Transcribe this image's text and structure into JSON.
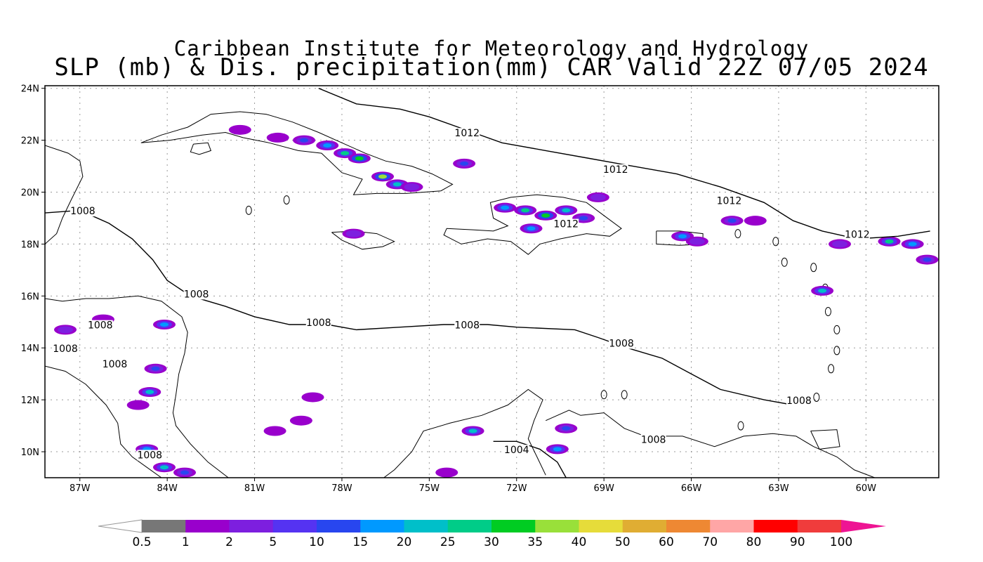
{
  "header": {
    "line1": "Caribbean Institute for Meteorology and Hydrology",
    "line2": "SLP (mb) & Dis. precipitation(mm) CAR Valid 22Z 07/05 2024"
  },
  "map": {
    "lon_range": [
      -88.2,
      -57.5
    ],
    "lat_range": [
      9.0,
      24.1
    ],
    "lat_ticks": [
      {
        "value": 24,
        "label": "24N"
      },
      {
        "value": 22,
        "label": "22N"
      },
      {
        "value": 20,
        "label": "20N"
      },
      {
        "value": 18,
        "label": "18N"
      },
      {
        "value": 16,
        "label": "16N"
      },
      {
        "value": 14,
        "label": "14N"
      },
      {
        "value": 12,
        "label": "12N"
      },
      {
        "value": 10,
        "label": "10N"
      }
    ],
    "lon_ticks": [
      {
        "value": -87,
        "label": "87W"
      },
      {
        "value": -84,
        "label": "84W"
      },
      {
        "value": -81,
        "label": "81W"
      },
      {
        "value": -78,
        "label": "78W"
      },
      {
        "value": -75,
        "label": "75W"
      },
      {
        "value": -72,
        "label": "72W"
      },
      {
        "value": -69,
        "label": "69W"
      },
      {
        "value": -66,
        "label": "66W"
      },
      {
        "value": -63,
        "label": "63W"
      },
      {
        "value": -60,
        "label": "60W"
      }
    ],
    "isobars": [
      {
        "value": 1012,
        "label": "1012",
        "points": [
          [
            -78.8,
            24.0
          ],
          [
            -77.5,
            23.4
          ],
          [
            -76.0,
            23.2
          ],
          [
            -75.0,
            22.9
          ],
          [
            -73.5,
            22.3
          ],
          [
            -72.5,
            21.9
          ],
          [
            -71.0,
            21.6
          ],
          [
            -69.5,
            21.3
          ],
          [
            -68.0,
            21.0
          ],
          [
            -66.5,
            20.7
          ],
          [
            -65.0,
            20.2
          ],
          [
            -63.5,
            19.6
          ],
          [
            -62.5,
            18.9
          ],
          [
            -61.5,
            18.5
          ],
          [
            -60.3,
            18.2
          ],
          [
            -58.9,
            18.3
          ],
          [
            -57.8,
            18.5
          ]
        ]
      },
      {
        "value": 1008,
        "label": "1008",
        "points": [
          [
            -88.2,
            19.2
          ],
          [
            -87.0,
            19.3
          ],
          [
            -86.0,
            18.8
          ],
          [
            -85.2,
            18.2
          ],
          [
            -84.5,
            17.4
          ],
          [
            -84.0,
            16.6
          ],
          [
            -83.2,
            16.0
          ],
          [
            -82.0,
            15.6
          ],
          [
            -81.0,
            15.2
          ],
          [
            -79.8,
            14.9
          ],
          [
            -78.5,
            14.9
          ],
          [
            -77.5,
            14.7
          ],
          [
            -76.0,
            14.8
          ],
          [
            -74.5,
            14.9
          ],
          [
            -73.0,
            14.9
          ],
          [
            -72.0,
            14.8
          ],
          [
            -70.0,
            14.7
          ],
          [
            -69.2,
            14.4
          ],
          [
            -68.2,
            14.0
          ],
          [
            -67.0,
            13.6
          ],
          [
            -66.0,
            13.0
          ],
          [
            -65.0,
            12.4
          ],
          [
            -63.5,
            12.0
          ],
          [
            -62.5,
            11.8
          ]
        ]
      },
      {
        "value": 1004,
        "label": "1004",
        "points": [
          [
            -72.8,
            10.4
          ],
          [
            -72.0,
            10.4
          ],
          [
            -71.2,
            10.1
          ],
          [
            -70.6,
            9.6
          ],
          [
            -70.3,
            9.0
          ]
        ]
      }
    ],
    "isobar_labels": [
      {
        "text": "1012",
        "lon": -73.7,
        "lat": 22.2
      },
      {
        "text": "1012",
        "lon": -68.6,
        "lat": 20.8
      },
      {
        "text": "1012",
        "lon": -64.7,
        "lat": 19.6
      },
      {
        "text": "1012",
        "lon": -70.3,
        "lat": 18.7
      },
      {
        "text": "1012",
        "lon": -60.3,
        "lat": 18.3
      },
      {
        "text": "1008",
        "lon": -86.9,
        "lat": 19.2
      },
      {
        "text": "1008",
        "lon": -83.0,
        "lat": 16.0
      },
      {
        "text": "1008",
        "lon": -78.8,
        "lat": 14.9
      },
      {
        "text": "1008",
        "lon": -73.7,
        "lat": 14.8
      },
      {
        "text": "1008",
        "lon": -68.4,
        "lat": 14.1
      },
      {
        "text": "1008",
        "lon": -86.3,
        "lat": 14.8
      },
      {
        "text": "1008",
        "lon": -87.5,
        "lat": 13.9
      },
      {
        "text": "1008",
        "lon": -85.8,
        "lat": 13.3
      },
      {
        "text": "1008",
        "lon": -84.6,
        "lat": 9.8
      },
      {
        "text": "1008",
        "lon": -62.3,
        "lat": 11.9
      },
      {
        "text": "1008",
        "lon": -67.3,
        "lat": 10.4
      },
      {
        "text": "1004",
        "lon": -72.0,
        "lat": 10.0
      }
    ],
    "precip_cells": [
      {
        "lon": -80.2,
        "lat": 22.1,
        "mm": 2
      },
      {
        "lon": -79.3,
        "lat": 22.0,
        "mm": 10
      },
      {
        "lon": -78.5,
        "lat": 21.8,
        "mm": 15
      },
      {
        "lon": -77.9,
        "lat": 21.5,
        "mm": 25
      },
      {
        "lon": -77.4,
        "lat": 21.3,
        "mm": 30
      },
      {
        "lon": -76.6,
        "lat": 20.6,
        "mm": 35
      },
      {
        "lon": -76.1,
        "lat": 20.3,
        "mm": 20
      },
      {
        "lon": -75.6,
        "lat": 20.2,
        "mm": 5
      },
      {
        "lon": -81.5,
        "lat": 22.4,
        "mm": 1
      },
      {
        "lon": -73.8,
        "lat": 21.1,
        "mm": 10
      },
      {
        "lon": -77.6,
        "lat": 18.4,
        "mm": 5
      },
      {
        "lon": -72.4,
        "lat": 19.4,
        "mm": 15
      },
      {
        "lon": -71.7,
        "lat": 19.3,
        "mm": 25
      },
      {
        "lon": -71.0,
        "lat": 19.1,
        "mm": 30
      },
      {
        "lon": -70.3,
        "lat": 19.3,
        "mm": 20
      },
      {
        "lon": -69.7,
        "lat": 19.0,
        "mm": 10
      },
      {
        "lon": -71.5,
        "lat": 18.6,
        "mm": 15
      },
      {
        "lon": -69.2,
        "lat": 19.8,
        "mm": 5
      },
      {
        "lon": -66.3,
        "lat": 18.3,
        "mm": 15
      },
      {
        "lon": -65.8,
        "lat": 18.1,
        "mm": 5
      },
      {
        "lon": -64.6,
        "lat": 18.9,
        "mm": 10
      },
      {
        "lon": -63.8,
        "lat": 18.9,
        "mm": 2
      },
      {
        "lon": -61.5,
        "lat": 16.2,
        "mm": 20
      },
      {
        "lon": -60.9,
        "lat": 18.0,
        "mm": 5
      },
      {
        "lon": -59.2,
        "lat": 18.1,
        "mm": 25
      },
      {
        "lon": -58.4,
        "lat": 18.0,
        "mm": 15
      },
      {
        "lon": -57.9,
        "lat": 17.4,
        "mm": 10
      },
      {
        "lon": -84.1,
        "lat": 14.9,
        "mm": 15
      },
      {
        "lon": -84.4,
        "lat": 13.2,
        "mm": 10
      },
      {
        "lon": -84.6,
        "lat": 12.3,
        "mm": 20
      },
      {
        "lon": -85.0,
        "lat": 11.8,
        "mm": 2
      },
      {
        "lon": -84.7,
        "lat": 10.1,
        "mm": 15
      },
      {
        "lon": -84.1,
        "lat": 9.4,
        "mm": 20
      },
      {
        "lon": -83.4,
        "lat": 9.2,
        "mm": 10
      },
      {
        "lon": -73.5,
        "lat": 10.8,
        "mm": 20
      },
      {
        "lon": -70.3,
        "lat": 10.9,
        "mm": 10
      },
      {
        "lon": -70.6,
        "lat": 10.1,
        "mm": 15
      },
      {
        "lon": -74.4,
        "lat": 9.2,
        "mm": 2
      },
      {
        "lon": -79.4,
        "lat": 11.2,
        "mm": 1
      },
      {
        "lon": -80.3,
        "lat": 10.8,
        "mm": 1
      },
      {
        "lon": -79.0,
        "lat": 12.1,
        "mm": 2
      },
      {
        "lon": -86.2,
        "lat": 15.1,
        "mm": 2
      },
      {
        "lon": -87.5,
        "lat": 14.7,
        "mm": 5
      }
    ]
  },
  "colorbar": {
    "bins": [
      {
        "label": "0.5",
        "color": "#777777"
      },
      {
        "label": "1",
        "color": "#9900cc"
      },
      {
        "label": "2",
        "color": "#7d1fdf"
      },
      {
        "label": "5",
        "color": "#5533f2"
      },
      {
        "label": "10",
        "color": "#2846ef"
      },
      {
        "label": "15",
        "color": "#0099ff"
      },
      {
        "label": "20",
        "color": "#00bfc9"
      },
      {
        "label": "25",
        "color": "#00cc88"
      },
      {
        "label": "30",
        "color": "#00cc22"
      },
      {
        "label": "35",
        "color": "#99e03a"
      },
      {
        "label": "40",
        "color": "#e6dc3a"
      },
      {
        "label": "50",
        "color": "#e0ad33"
      },
      {
        "label": "60",
        "color": "#ee8833"
      },
      {
        "label": "70",
        "color": "#ffa6a6"
      },
      {
        "label": "80",
        "color": "#ff0000"
      },
      {
        "label": "90",
        "color": "#f03c3c"
      },
      {
        "label": "100",
        "color": "#ee1493"
      }
    ]
  }
}
